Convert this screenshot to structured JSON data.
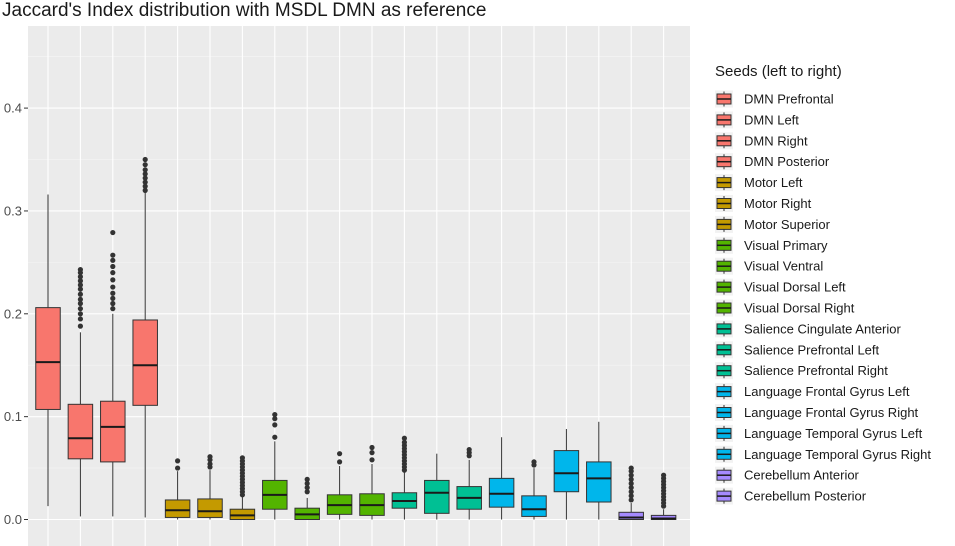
{
  "chart_data": {
    "type": "boxplot",
    "title": "Jaccard's Index distribution with MSDL DMN as reference",
    "xlabel": "",
    "ylabel": "",
    "ylim": [
      -0.02,
      0.49
    ],
    "y_ticks": [
      0.0,
      0.1,
      0.2,
      0.3,
      0.4
    ],
    "y_tick_labels": [
      "0.0",
      "0.1",
      "0.2",
      "0.3",
      "0.4"
    ],
    "grid": true,
    "legend_title": "Seeds (left to right)",
    "legend_position": "right",
    "series": [
      {
        "name": "DMN Prefrontal",
        "color": "#F8766D",
        "whisker_low": 0.013,
        "q1": 0.107,
        "median": 0.153,
        "q3": 0.206,
        "whisker_high": 0.316,
        "outliers": []
      },
      {
        "name": "DMN Left",
        "color": "#F8766D",
        "whisker_low": 0.003,
        "q1": 0.059,
        "median": 0.079,
        "q3": 0.112,
        "whisker_high": 0.182,
        "outliers": [
          0.188,
          0.195,
          0.2,
          0.205,
          0.21,
          0.214,
          0.219,
          0.224,
          0.228,
          0.232,
          0.236,
          0.24,
          0.243
        ]
      },
      {
        "name": "DMN Right",
        "color": "#F8766D",
        "whisker_low": 0.003,
        "q1": 0.056,
        "median": 0.09,
        "q3": 0.115,
        "whisker_high": 0.2,
        "outliers": [
          0.205,
          0.21,
          0.215,
          0.22,
          0.226,
          0.233,
          0.24,
          0.246,
          0.252,
          0.257,
          0.279
        ]
      },
      {
        "name": "DMN Posterior",
        "color": "#F8766D",
        "whisker_low": 0.002,
        "q1": 0.111,
        "median": 0.15,
        "q3": 0.194,
        "whisker_high": 0.318,
        "outliers": [
          0.32,
          0.324,
          0.328,
          0.332,
          0.336,
          0.34,
          0.345,
          0.35
        ]
      },
      {
        "name": "Motor Left",
        "color": "#C49A00",
        "whisker_low": 0.0,
        "q1": 0.002,
        "median": 0.009,
        "q3": 0.019,
        "whisker_high": 0.047,
        "outliers": [
          0.05,
          0.057
        ]
      },
      {
        "name": "Motor Right",
        "color": "#C49A00",
        "whisker_low": 0.0,
        "q1": 0.002,
        "median": 0.008,
        "q3": 0.02,
        "whisker_high": 0.048,
        "outliers": [
          0.051,
          0.054,
          0.058,
          0.061
        ]
      },
      {
        "name": "Motor Superior",
        "color": "#C49A00",
        "whisker_low": 0.0,
        "q1": 0.0,
        "median": 0.004,
        "q3": 0.01,
        "whisker_high": 0.022,
        "outliers": [
          0.024,
          0.027,
          0.03,
          0.033,
          0.036,
          0.039,
          0.042,
          0.045,
          0.048,
          0.051,
          0.054,
          0.057,
          0.06
        ]
      },
      {
        "name": "Visual Primary",
        "color": "#53B400",
        "whisker_low": 0.0,
        "q1": 0.01,
        "median": 0.024,
        "q3": 0.038,
        "whisker_high": 0.076,
        "outliers": [
          0.08,
          0.092,
          0.098,
          0.102
        ]
      },
      {
        "name": "Visual Ventral",
        "color": "#53B400",
        "whisker_low": 0.0,
        "q1": 0.0,
        "median": 0.005,
        "q3": 0.011,
        "whisker_high": 0.021,
        "outliers": [
          0.027,
          0.031,
          0.035,
          0.039
        ]
      },
      {
        "name": "Visual Dorsal Left",
        "color": "#53B400",
        "whisker_low": 0.0,
        "q1": 0.005,
        "median": 0.014,
        "q3": 0.024,
        "whisker_high": 0.052,
        "outliers": [
          0.056,
          0.064
        ]
      },
      {
        "name": "Visual Dorsal Right",
        "color": "#53B400",
        "whisker_low": 0.0,
        "q1": 0.004,
        "median": 0.014,
        "q3": 0.025,
        "whisker_high": 0.054,
        "outliers": [
          0.058,
          0.065,
          0.07
        ]
      },
      {
        "name": "Salience Cingulate Anterior",
        "color": "#00C094",
        "whisker_low": 0.0,
        "q1": 0.011,
        "median": 0.018,
        "q3": 0.026,
        "whisker_high": 0.046,
        "outliers": [
          0.048,
          0.051,
          0.054,
          0.057,
          0.06,
          0.063,
          0.066,
          0.069,
          0.072,
          0.075,
          0.079
        ]
      },
      {
        "name": "Salience Prefrontal Left",
        "color": "#00C094",
        "whisker_low": 0.0,
        "q1": 0.006,
        "median": 0.026,
        "q3": 0.038,
        "whisker_high": 0.064,
        "outliers": []
      },
      {
        "name": "Salience Prefrontal Right",
        "color": "#00C094",
        "whisker_low": 0.0,
        "q1": 0.01,
        "median": 0.021,
        "q3": 0.032,
        "whisker_high": 0.058,
        "outliers": [
          0.062,
          0.065,
          0.068
        ]
      },
      {
        "name": "Language Frontal Gyrus Left",
        "color": "#00B6EB",
        "whisker_low": 0.0,
        "q1": 0.012,
        "median": 0.025,
        "q3": 0.04,
        "whisker_high": 0.08,
        "outliers": []
      },
      {
        "name": "Language Frontal Gyrus Right",
        "color": "#00B6EB",
        "whisker_low": 0.0,
        "q1": 0.003,
        "median": 0.01,
        "q3": 0.023,
        "whisker_high": 0.05,
        "outliers": [
          0.053,
          0.056
        ]
      },
      {
        "name": "Language Temporal Gyrus Left",
        "color": "#00B6EB",
        "whisker_low": 0.0,
        "q1": 0.027,
        "median": 0.045,
        "q3": 0.067,
        "whisker_high": 0.088,
        "outliers": []
      },
      {
        "name": "Language Temporal Gyrus Right",
        "color": "#00B6EB",
        "whisker_low": 0.0,
        "q1": 0.017,
        "median": 0.04,
        "q3": 0.056,
        "whisker_high": 0.095,
        "outliers": []
      },
      {
        "name": "Cerebellum Anterior",
        "color": "#A58AFF",
        "whisker_low": 0.0,
        "q1": 0.0,
        "median": 0.002,
        "q3": 0.007,
        "whisker_high": 0.016,
        "outliers": [
          0.019,
          0.023,
          0.027,
          0.031,
          0.035,
          0.039,
          0.043,
          0.047,
          0.05
        ]
      },
      {
        "name": "Cerebellum Posterior",
        "color": "#A58AFF",
        "whisker_low": 0.0,
        "q1": 0.0,
        "median": 0.001,
        "q3": 0.004,
        "whisker_high": 0.01,
        "outliers": [
          0.013,
          0.016,
          0.019,
          0.022,
          0.025,
          0.028,
          0.031,
          0.034,
          0.037,
          0.04,
          0.043
        ]
      }
    ]
  }
}
